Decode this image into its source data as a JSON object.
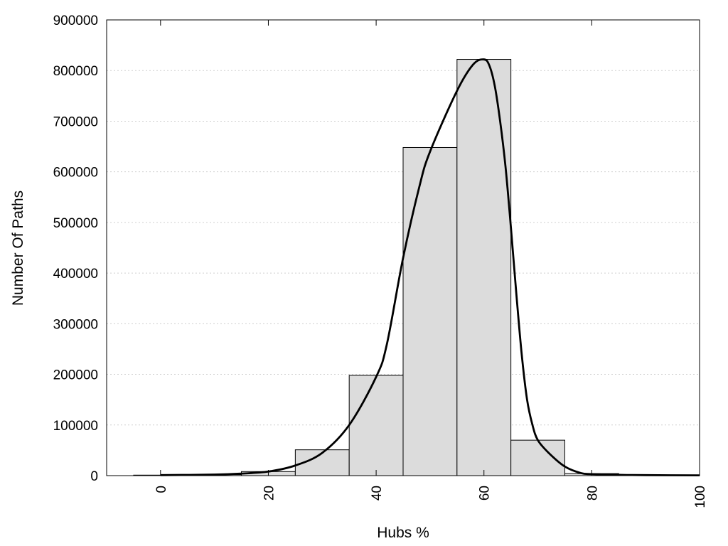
{
  "chart_data": {
    "type": "bar",
    "xlabel": "Hubs %",
    "ylabel": "Number Of Paths",
    "xlim": [
      -10,
      100
    ],
    "ylim": [
      0,
      900000
    ],
    "x_ticks": [
      0,
      20,
      40,
      60,
      80,
      100
    ],
    "y_ticks": [
      0,
      100000,
      200000,
      300000,
      400000,
      500000,
      600000,
      700000,
      800000,
      900000
    ],
    "grid": "horizontal dotted",
    "bin_width": 10,
    "bars": [
      {
        "center": 0,
        "value": 1000
      },
      {
        "center": 10,
        "value": 2000
      },
      {
        "center": 20,
        "value": 8000
      },
      {
        "center": 30,
        "value": 51000
      },
      {
        "center": 40,
        "value": 198000
      },
      {
        "center": 50,
        "value": 648000
      },
      {
        "center": 60,
        "value": 822000
      },
      {
        "center": 70,
        "value": 70000
      },
      {
        "center": 80,
        "value": 4000
      },
      {
        "center": 90,
        "value": 1000
      }
    ],
    "curve": [
      [
        0,
        1000
      ],
      [
        10,
        2000
      ],
      [
        15,
        4000
      ],
      [
        20,
        8000
      ],
      [
        25,
        20000
      ],
      [
        30,
        45000
      ],
      [
        35,
        100000
      ],
      [
        40,
        195000
      ],
      [
        42,
        260000
      ],
      [
        45,
        430000
      ],
      [
        48,
        570000
      ],
      [
        50,
        640000
      ],
      [
        55,
        760000
      ],
      [
        58,
        812000
      ],
      [
        60,
        822000
      ],
      [
        61,
        810000
      ],
      [
        62,
        770000
      ],
      [
        63,
        700000
      ],
      [
        64,
        610000
      ],
      [
        65,
        490000
      ],
      [
        66,
        360000
      ],
      [
        67,
        240000
      ],
      [
        68,
        150000
      ],
      [
        69,
        100000
      ],
      [
        70,
        70000
      ],
      [
        72,
        45000
      ],
      [
        75,
        18000
      ],
      [
        78,
        5000
      ],
      [
        80,
        3000
      ],
      [
        85,
        1500
      ],
      [
        90,
        1000
      ],
      [
        100,
        500
      ]
    ],
    "colors": {
      "bar_fill": "#dcdcdc",
      "line": "#000000"
    }
  }
}
